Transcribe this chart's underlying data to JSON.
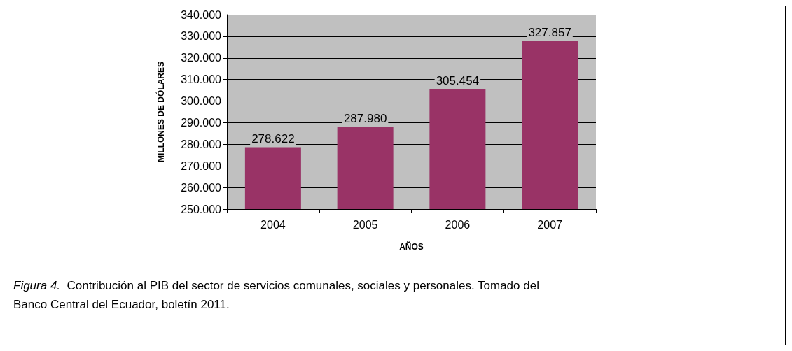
{
  "chart_data": {
    "type": "bar",
    "xlabel": "AÑOS",
    "ylabel": "MILLONES DE DÓLARES",
    "categories": [
      "2004",
      "2005",
      "2006",
      "2007"
    ],
    "values": [
      278622,
      287980,
      305454,
      327857
    ],
    "value_labels": [
      "278.622",
      "287.980",
      "305.454",
      "327.857"
    ],
    "color": "#993366",
    "ylim": [
      250000,
      340000
    ],
    "yticks": [
      {
        "value": 250000,
        "label": "250.000"
      },
      {
        "value": 260000,
        "label": "260.000"
      },
      {
        "value": 270000,
        "label": "270.000"
      },
      {
        "value": 280000,
        "label": "280.000"
      },
      {
        "value": 290000,
        "label": "290.000"
      },
      {
        "value": 300000,
        "label": "300.000"
      },
      {
        "value": 310000,
        "label": "310.000"
      },
      {
        "value": 320000,
        "label": "320.000"
      },
      {
        "value": 330000,
        "label": "330.000"
      },
      {
        "value": 340000,
        "label": "340.000"
      }
    ],
    "grid": "y",
    "annotations": [
      "Figura 4.",
      "Contribución al PIB del sector de servicios comunales, sociales y personales. Tomado del Banco Central del Ecuador, boletín 2011."
    ]
  }
}
